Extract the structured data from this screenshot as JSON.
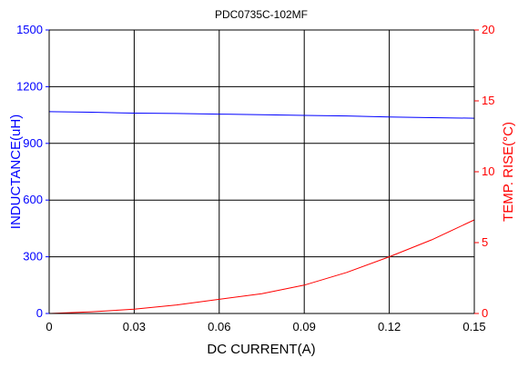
{
  "chart_data": {
    "type": "line",
    "title": "PDC0735C-102MF",
    "xlabel": "DC CURRENT(A)",
    "ylabel_left": "INDUCTANCE(uH)",
    "ylabel_right": "TEMP. RISE(°C)",
    "xlim": [
      0,
      0.15
    ],
    "ylim_left": [
      0,
      1500
    ],
    "ylim_right": [
      0,
      20
    ],
    "x_ticks": [
      "0",
      "0.03",
      "0.06",
      "0.09",
      "0.12",
      "0.15"
    ],
    "y_left_ticks": [
      "0",
      "300",
      "600",
      "900",
      "1200",
      "1500"
    ],
    "y_right_ticks": [
      "0",
      "5",
      "10",
      "15",
      "20"
    ],
    "grid": true,
    "series": [
      {
        "axis": "left",
        "color": "#0000ff",
        "x": [
          0,
          0.015,
          0.03,
          0.045,
          0.06,
          0.075,
          0.09,
          0.105,
          0.12,
          0.135,
          0.15
        ],
        "y": [
          1068,
          1065,
          1060,
          1058,
          1055,
          1052,
          1048,
          1045,
          1040,
          1036,
          1033
        ]
      },
      {
        "axis": "right",
        "color": "#ff0000",
        "x": [
          0,
          0.015,
          0.03,
          0.045,
          0.06,
          0.075,
          0.09,
          0.105,
          0.12,
          0.135,
          0.15
        ],
        "y": [
          0,
          0.12,
          0.3,
          0.6,
          1.0,
          1.4,
          2.0,
          2.9,
          4.0,
          5.2,
          6.6
        ]
      }
    ]
  }
}
